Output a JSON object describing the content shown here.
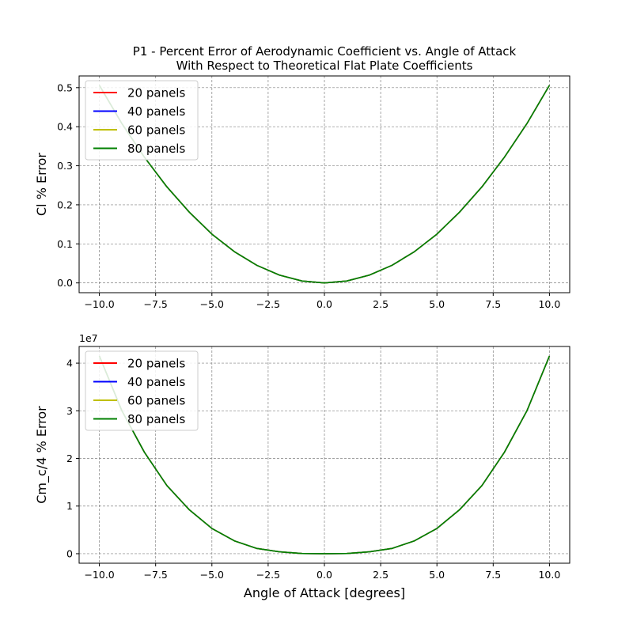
{
  "figure": {
    "title_line1": "P1 - Percent Error of Aerodynamic Coefficient vs. Angle of Attack",
    "title_line2": "With Respect to Theoretical Flat Plate Coefficients"
  },
  "chart_data": [
    {
      "type": "line",
      "title": "",
      "xlabel": "",
      "ylabel": "Cl % Error",
      "xlim": [
        -10.9,
        10.9
      ],
      "ylim": [
        -0.025,
        0.53
      ],
      "xticks": [
        -10.0,
        -7.5,
        -5.0,
        -2.5,
        0.0,
        2.5,
        5.0,
        7.5,
        10.0
      ],
      "xtick_labels": [
        "−10.0",
        "−7.5",
        "−5.0",
        "−2.5",
        "0.0",
        "2.5",
        "5.0",
        "7.5",
        "10.0"
      ],
      "yticks": [
        0.0,
        0.1,
        0.2,
        0.3,
        0.4,
        0.5
      ],
      "ytick_labels": [
        "0.0",
        "0.1",
        "0.2",
        "0.3",
        "0.4",
        "0.5"
      ],
      "grid": true,
      "legend_position": "upper-left",
      "x": [
        -10,
        -9,
        -8,
        -7,
        -6,
        -5,
        -4,
        -3,
        -2,
        -1,
        0,
        1,
        2,
        3,
        4,
        5,
        6,
        7,
        8,
        9,
        10
      ],
      "series": [
        {
          "name": "20 panels",
          "color": "#ff0000",
          "values": [
            0.506,
            0.408,
            0.322,
            0.246,
            0.181,
            0.125,
            0.08,
            0.045,
            0.02,
            0.005,
            0.0,
            0.005,
            0.02,
            0.045,
            0.08,
            0.125,
            0.181,
            0.246,
            0.322,
            0.408,
            0.506
          ]
        },
        {
          "name": "40 panels",
          "color": "#0000ff",
          "values": [
            0.506,
            0.408,
            0.322,
            0.246,
            0.181,
            0.125,
            0.08,
            0.045,
            0.02,
            0.005,
            0.0,
            0.005,
            0.02,
            0.045,
            0.08,
            0.125,
            0.181,
            0.246,
            0.322,
            0.408,
            0.506
          ]
        },
        {
          "name": "60 panels",
          "color": "#bfbf00",
          "values": [
            0.506,
            0.408,
            0.322,
            0.246,
            0.181,
            0.125,
            0.08,
            0.045,
            0.02,
            0.005,
            0.0,
            0.005,
            0.02,
            0.045,
            0.08,
            0.125,
            0.181,
            0.246,
            0.322,
            0.408,
            0.506
          ]
        },
        {
          "name": "80 panels",
          "color": "#008000",
          "values": [
            0.506,
            0.408,
            0.322,
            0.246,
            0.181,
            0.125,
            0.08,
            0.045,
            0.02,
            0.005,
            0.0,
            0.005,
            0.02,
            0.045,
            0.08,
            0.125,
            0.181,
            0.246,
            0.322,
            0.408,
            0.506
          ]
        }
      ]
    },
    {
      "type": "line",
      "title": "",
      "xlabel": "Angle of Attack [degrees]",
      "ylabel": "Cm_c/4 % Error",
      "offset_text": "1e7",
      "xlim": [
        -10.9,
        10.9
      ],
      "ylim": [
        -0.2,
        4.35
      ],
      "xticks": [
        -10.0,
        -7.5,
        -5.0,
        -2.5,
        0.0,
        2.5,
        5.0,
        7.5,
        10.0
      ],
      "xtick_labels": [
        "−10.0",
        "−7.5",
        "−5.0",
        "−2.5",
        "0.0",
        "2.5",
        "5.0",
        "7.5",
        "10.0"
      ],
      "yticks": [
        0,
        1,
        2,
        3,
        4
      ],
      "ytick_labels": [
        "0",
        "1",
        "2",
        "3",
        "4"
      ],
      "grid": true,
      "legend_position": "upper-left",
      "x": [
        -10,
        -9,
        -8,
        -7,
        -6,
        -5,
        -4,
        -3,
        -2,
        -1,
        0,
        1,
        2,
        3,
        4,
        5,
        6,
        7,
        8,
        9,
        10
      ],
      "series": [
        {
          "name": "20 panels",
          "color": "#ff0000",
          "values": [
            4.15,
            3.0,
            2.13,
            1.43,
            0.92,
            0.53,
            0.27,
            0.11,
            0.04,
            0.005,
            0.0,
            0.005,
            0.04,
            0.11,
            0.27,
            0.53,
            0.92,
            1.43,
            2.13,
            3.0,
            4.15
          ]
        },
        {
          "name": "40 panels",
          "color": "#0000ff",
          "values": [
            4.15,
            3.0,
            2.13,
            1.43,
            0.92,
            0.53,
            0.27,
            0.11,
            0.04,
            0.005,
            0.0,
            0.005,
            0.04,
            0.11,
            0.27,
            0.53,
            0.92,
            1.43,
            2.13,
            3.0,
            4.15
          ]
        },
        {
          "name": "60 panels",
          "color": "#bfbf00",
          "values": [
            4.15,
            3.0,
            2.13,
            1.43,
            0.92,
            0.53,
            0.27,
            0.11,
            0.04,
            0.005,
            0.0,
            0.005,
            0.04,
            0.11,
            0.27,
            0.53,
            0.92,
            1.43,
            2.13,
            3.0,
            4.15
          ]
        },
        {
          "name": "80 panels",
          "color": "#008000",
          "values": [
            4.15,
            3.0,
            2.13,
            1.43,
            0.92,
            0.53,
            0.27,
            0.11,
            0.04,
            0.005,
            0.0,
            0.005,
            0.04,
            0.11,
            0.27,
            0.53,
            0.92,
            1.43,
            2.13,
            3.0,
            4.15
          ]
        }
      ]
    }
  ]
}
